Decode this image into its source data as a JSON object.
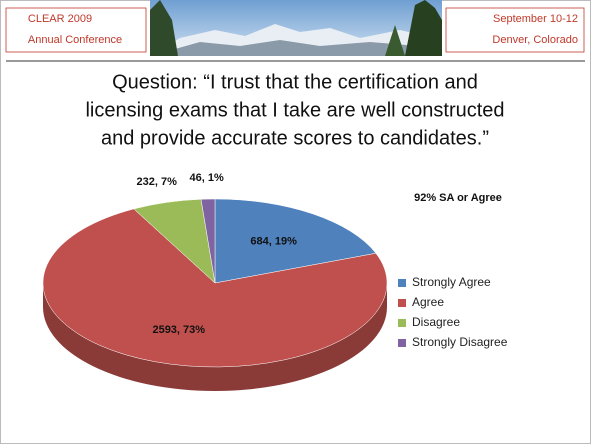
{
  "header": {
    "left": [
      "CLEAR 2009",
      "Annual Conference"
    ],
    "right": [
      "September 10-12",
      "Denver, Colorado"
    ]
  },
  "chart_data": {
    "type": "pie",
    "title_lines": [
      "Question: “I trust that the certification and",
      "licensing exams that I take are well constructed",
      "and provide accurate scores to candidates.”"
    ],
    "annotation": "92% SA or Agree",
    "categories": [
      "Strongly Agree",
      "Agree",
      "Disagree",
      "Strongly Disagree"
    ],
    "values": [
      684,
      2593,
      232,
      46
    ],
    "value_labels": [
      "684, 19%",
      "2593, 73%",
      "232, 7%",
      "46, 1%"
    ],
    "colors": [
      "#4f81bd",
      "#c0504d",
      "#9bbb59",
      "#8064a2"
    ],
    "legend": "right"
  }
}
